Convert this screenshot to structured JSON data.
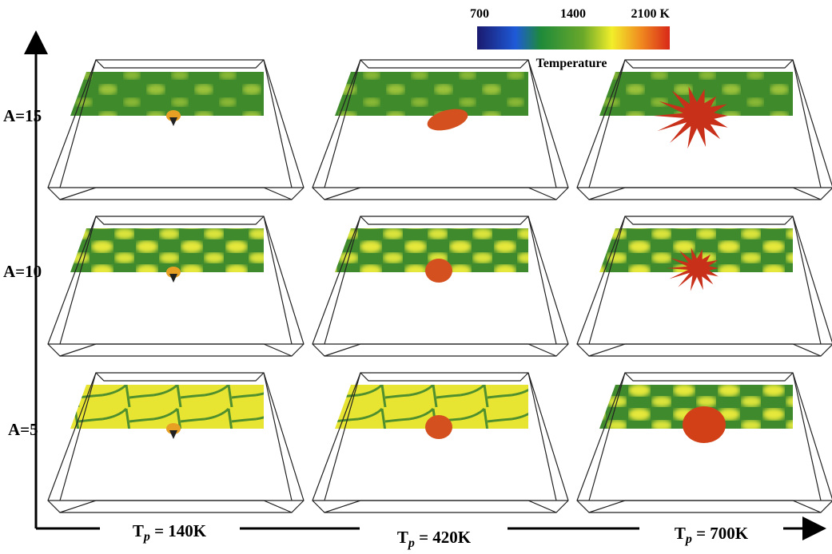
{
  "colorbar": {
    "ticks": [
      "700",
      "1400",
      "2100 K"
    ],
    "title": "Temperature"
  },
  "rows": [
    "A=15",
    "A=10",
    "A=5"
  ],
  "columns": [
    {
      "main": "T",
      "sub": "p",
      "rest": " = 140K"
    },
    {
      "main": "T",
      "sub": "p",
      "rest": " = 420K"
    },
    {
      "main": "T",
      "sub": "p",
      "rest": " = 700K"
    }
  ]
}
